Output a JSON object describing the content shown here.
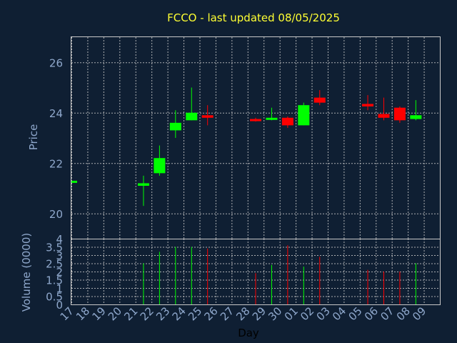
{
  "chart_data": {
    "type": "candlestick",
    "title": "FCCO - last updated 08/05/2025",
    "xlabel": "Day",
    "price_panel": {
      "ylabel": "Price",
      "ylim": [
        19,
        27
      ],
      "yticks": [
        20,
        22,
        24,
        26
      ],
      "grid": true
    },
    "volume_panel": {
      "ylabel": "Volume (0000)",
      "ylim": [
        0,
        4
      ],
      "yticks": [
        0,
        0.5,
        1,
        1.5,
        2,
        2.5,
        3,
        3.5,
        4
      ],
      "ytick_labels": [
        "0",
        "0.5",
        "1",
        "1.5",
        "2",
        "2.5",
        "3",
        "3.5",
        "4"
      ],
      "grid": true
    },
    "x_tick_labels": [
      "17",
      "18",
      "19",
      "20",
      "21",
      "22",
      "23",
      "24",
      "25",
      "26",
      "27",
      "28",
      "29",
      "30",
      "01",
      "02",
      "03",
      "04",
      "05",
      "06",
      "07",
      "08",
      "09"
    ],
    "candles": [
      {
        "day": "17",
        "open": 21.3,
        "high": 21.3,
        "low": 21.3,
        "close": 21.3,
        "volume": 0,
        "direction": "up"
      },
      {
        "day": "21",
        "open": 21.1,
        "high": 21.5,
        "low": 20.3,
        "close": 21.2,
        "volume": 2.5,
        "direction": "up"
      },
      {
        "day": "22",
        "open": 21.6,
        "high": 22.7,
        "low": 21.5,
        "close": 22.2,
        "volume": 3.2,
        "direction": "up"
      },
      {
        "day": "23",
        "open": 23.3,
        "high": 24.1,
        "low": 23.0,
        "close": 23.6,
        "volume": 3.5,
        "direction": "up"
      },
      {
        "day": "24",
        "open": 23.7,
        "high": 25.0,
        "low": 23.7,
        "close": 24.0,
        "volume": 3.5,
        "direction": "up"
      },
      {
        "day": "25",
        "open": 23.9,
        "high": 24.3,
        "low": 23.5,
        "close": 23.8,
        "volume": 3.4,
        "direction": "down"
      },
      {
        "day": "28",
        "open": 23.75,
        "high": 23.8,
        "low": 23.65,
        "close": 23.7,
        "volume": 1.9,
        "direction": "down"
      },
      {
        "day": "29",
        "open": 23.75,
        "high": 24.2,
        "low": 23.7,
        "close": 23.8,
        "volume": 2.4,
        "direction": "up"
      },
      {
        "day": "30",
        "open": 23.8,
        "high": 23.85,
        "low": 23.4,
        "close": 23.5,
        "volume": 3.6,
        "direction": "down"
      },
      {
        "day": "01",
        "open": 23.5,
        "high": 24.4,
        "low": 23.5,
        "close": 24.3,
        "volume": 2.3,
        "direction": "up"
      },
      {
        "day": "02",
        "open": 24.6,
        "high": 24.9,
        "low": 24.3,
        "close": 24.4,
        "volume": 2.9,
        "direction": "down"
      },
      {
        "day": "05",
        "open": 24.35,
        "high": 24.7,
        "low": 24.1,
        "close": 24.25,
        "volume": 2.1,
        "direction": "down"
      },
      {
        "day": "06",
        "open": 23.95,
        "high": 24.6,
        "low": 23.7,
        "close": 23.8,
        "volume": 2.0,
        "direction": "down"
      },
      {
        "day": "07",
        "open": 24.2,
        "high": 24.25,
        "low": 23.6,
        "close": 23.7,
        "volume": 2.0,
        "direction": "down"
      },
      {
        "day": "08",
        "open": 23.75,
        "high": 24.5,
        "low": 23.7,
        "close": 23.9,
        "volume": 2.5,
        "direction": "up"
      }
    ],
    "colors": {
      "background": "#0f1f33",
      "up": "#00ff00",
      "down": "#ff0000",
      "title": "#ffff33",
      "axis_text": "#8fa8cc",
      "grid": "#c8c8c8"
    }
  }
}
